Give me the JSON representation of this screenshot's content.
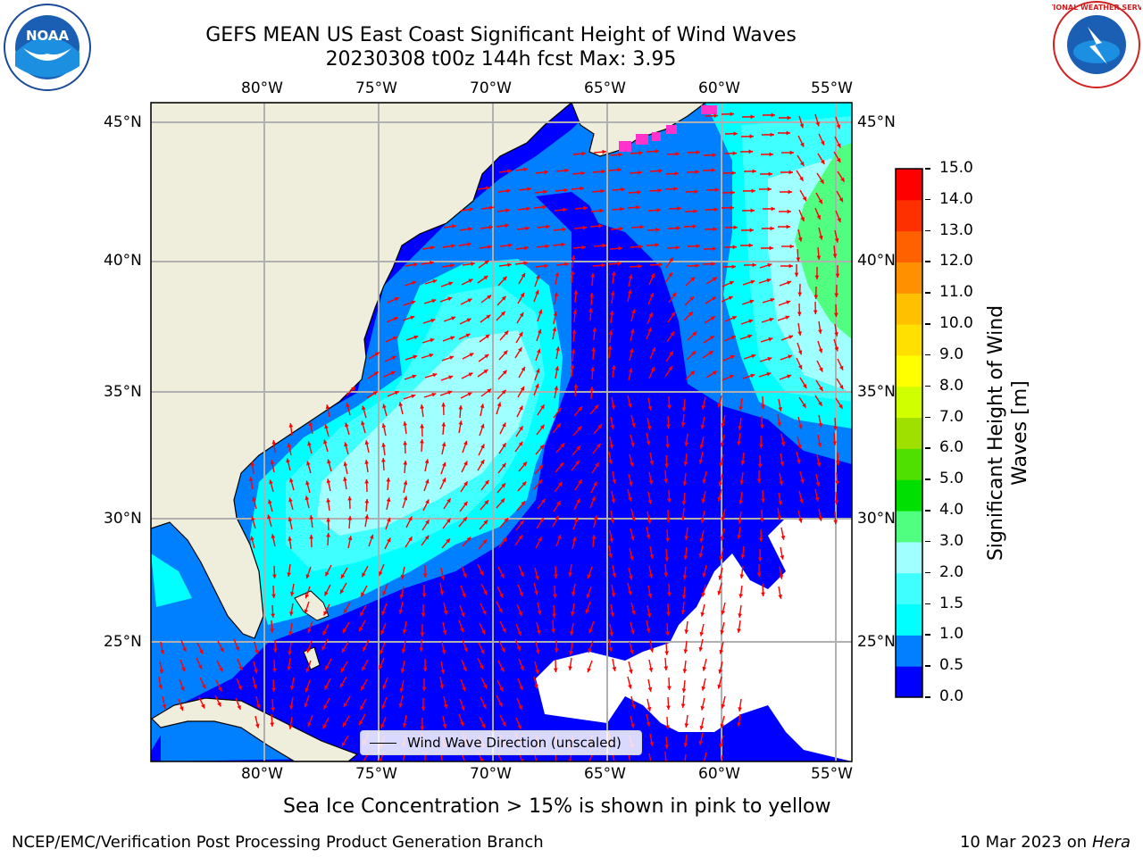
{
  "header": {
    "title_line1": "GEFS MEAN US East Coast Significant Height of Wind Waves",
    "title_line2": "20230308 t00z 144h fcst   Max: 3.95"
  },
  "logos": {
    "left": {
      "name": "noaa-logo",
      "text": "NOAA"
    },
    "right": {
      "name": "national-weather-service-logo",
      "text": "NATIONAL WEATHER SERVICE"
    }
  },
  "map": {
    "lon_labels": [
      "80°W",
      "75°W",
      "70°W",
      "65°W",
      "60°W",
      "55°W"
    ],
    "lat_labels": [
      "45°N",
      "40°N",
      "35°N",
      "30°N",
      "25°N"
    ],
    "legend_label": "Wind Wave Direction (unscaled)",
    "arrow_color": "#ff0000",
    "land_color": "#efeedc",
    "sea_ice_color": "#ff33cc"
  },
  "colorbar": {
    "label": "Significant Height of Wind Waves [m]",
    "label_line1": "Significant Height of Wind",
    "label_line2": "Waves [m]",
    "ticks": [
      "0.0",
      "0.5",
      "1.0",
      "1.5",
      "2.0",
      "3.0",
      "4.0",
      "5.0",
      "6.0",
      "7.0",
      "8.0",
      "9.0",
      "10.0",
      "11.0",
      "12.0",
      "13.0",
      "14.0",
      "15.0"
    ],
    "colors": [
      "#0000ff",
      "#0080ff",
      "#00ffff",
      "#40ffff",
      "#a0ffff",
      "#50ff80",
      "#00e000",
      "#50e000",
      "#a0e000",
      "#d0ff00",
      "#ffff00",
      "#ffe000",
      "#ffc000",
      "#ff9000",
      "#ff6000",
      "#ff3000",
      "#ff0000"
    ]
  },
  "caption": "Sea Ice Concentration > 15% is shown in pink to yellow",
  "footer": {
    "left": "NCEP/EMC/Verification Post Processing Product Generation Branch",
    "date": "10 Mar 2023 on",
    "machine": "Hera"
  }
}
